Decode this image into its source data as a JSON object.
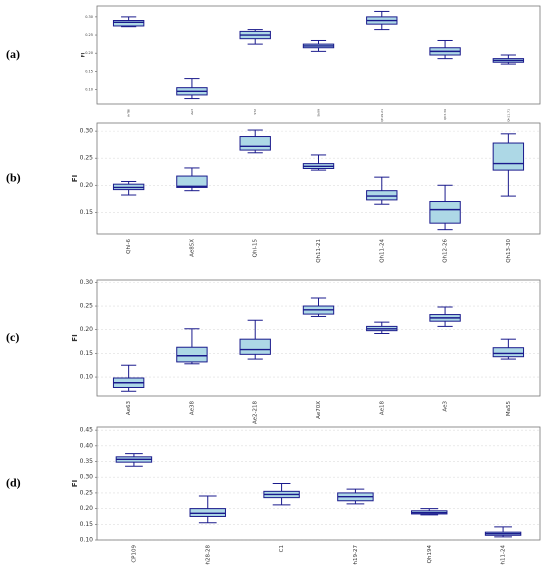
{
  "chart_data": [
    {
      "type": "box",
      "panel_label": "(a)",
      "ylabel": "FI",
      "grid": false,
      "color": "#add8e6",
      "edge_color": "#1a1a8c",
      "categories": [
        "ArTBl",
        "Ae3",
        "ST2",
        "Sb09",
        "Qh19.21",
        "Qh3.36",
        "Qh11.71"
      ],
      "min": [
        0.273,
        0.075,
        0.225,
        0.205,
        0.265,
        0.185,
        0.17
      ],
      "q1": [
        0.275,
        0.085,
        0.24,
        0.215,
        0.28,
        0.195,
        0.175
      ],
      "median": [
        0.285,
        0.095,
        0.25,
        0.22,
        0.29,
        0.205,
        0.18
      ],
      "q3": [
        0.29,
        0.105,
        0.26,
        0.225,
        0.3,
        0.215,
        0.185
      ],
      "max": [
        0.3,
        0.13,
        0.265,
        0.235,
        0.315,
        0.235,
        0.195
      ],
      "ylim": [
        0.06,
        0.33
      ],
      "yticks": [
        {
          "value": 0.1,
          "label": "0.10"
        },
        0.15,
        {
          "value": 0.2,
          "label": "0.20"
        },
        0.25,
        {
          "value": 0.3,
          "label": "0.30"
        }
      ]
    },
    {
      "type": "box",
      "panel_label": "(b)",
      "ylabel": "FI",
      "grid": true,
      "color": "#add8e6",
      "edge_color": "#1a1a8c",
      "categories": [
        "Qhl-6",
        "Ae85X",
        "Qhl-15",
        "Qh11-21",
        "Qh11-24",
        "Qh12-26",
        "Qh13-30"
      ],
      "min": [
        0.182,
        0.19,
        0.26,
        0.228,
        0.165,
        0.118,
        0.18
      ],
      "q1": [
        0.192,
        0.196,
        0.265,
        0.231,
        0.173,
        0.13,
        0.228
      ],
      "median": [
        0.196,
        0.198,
        0.272,
        0.235,
        0.18,
        0.155,
        0.24
      ],
      "q3": [
        0.202,
        0.217,
        0.29,
        0.24,
        0.19,
        0.17,
        0.278
      ],
      "max": [
        0.207,
        0.232,
        0.302,
        0.256,
        0.215,
        0.2,
        0.295
      ],
      "ylim": [
        0.11,
        0.315
      ],
      "yticks": [
        0.15,
        {
          "value": 0.2,
          "label": "0.20"
        },
        0.25,
        {
          "value": 0.3,
          "label": "0.30"
        }
      ]
    },
    {
      "type": "box",
      "panel_label": "(c)",
      "ylabel": "FI",
      "grid": true,
      "color": "#add8e6",
      "edge_color": "#1a1a8c",
      "categories": [
        "Ae63",
        "Ae38",
        "Ae2-218",
        "Ae70X",
        "Ae18",
        "Ae3",
        "Ma55"
      ],
      "min": [
        0.07,
        0.128,
        0.138,
        0.228,
        0.192,
        0.207,
        0.138
      ],
      "q1": [
        0.078,
        0.132,
        0.148,
        0.233,
        0.198,
        0.218,
        0.143
      ],
      "median": [
        0.088,
        0.145,
        0.158,
        0.242,
        0.202,
        0.225,
        0.15
      ],
      "q3": [
        0.098,
        0.163,
        0.18,
        0.25,
        0.207,
        0.232,
        0.162
      ],
      "max": [
        0.125,
        0.202,
        0.22,
        0.267,
        0.216,
        0.248,
        0.18
      ],
      "ylim": [
        0.06,
        0.305
      ],
      "yticks": [
        {
          "value": 0.1,
          "label": "0.10"
        },
        0.15,
        {
          "value": 0.2,
          "label": "0.20"
        },
        0.25,
        {
          "value": 0.3,
          "label": "0.30"
        }
      ]
    },
    {
      "type": "box",
      "panel_label": "(d)",
      "ylabel": "FI",
      "grid": true,
      "color": "#add8e6",
      "edge_color": "#1a1a8c",
      "categories": [
        "CP109",
        "Qh28-28",
        "C1",
        "Qh19-27",
        "Qh194",
        "Qh11-24"
      ],
      "min": [
        0.335,
        0.155,
        0.212,
        0.215,
        0.18,
        0.11
      ],
      "q1": [
        0.348,
        0.175,
        0.235,
        0.225,
        0.183,
        0.115
      ],
      "median": [
        0.357,
        0.185,
        0.245,
        0.238,
        0.187,
        0.12
      ],
      "q3": [
        0.365,
        0.2,
        0.255,
        0.25,
        0.193,
        0.125
      ],
      "max": [
        0.375,
        0.24,
        0.28,
        0.262,
        0.2,
        0.142
      ],
      "ylim": [
        0.1,
        0.46
      ],
      "yticks": [
        {
          "value": 0.1,
          "label": "0.10"
        },
        0.15,
        {
          "value": 0.2,
          "label": "0.20"
        },
        0.25,
        {
          "value": 0.3,
          "label": "0.30"
        },
        0.35,
        {
          "value": 0.4,
          "label": "0.40"
        },
        0.45
      ]
    }
  ]
}
